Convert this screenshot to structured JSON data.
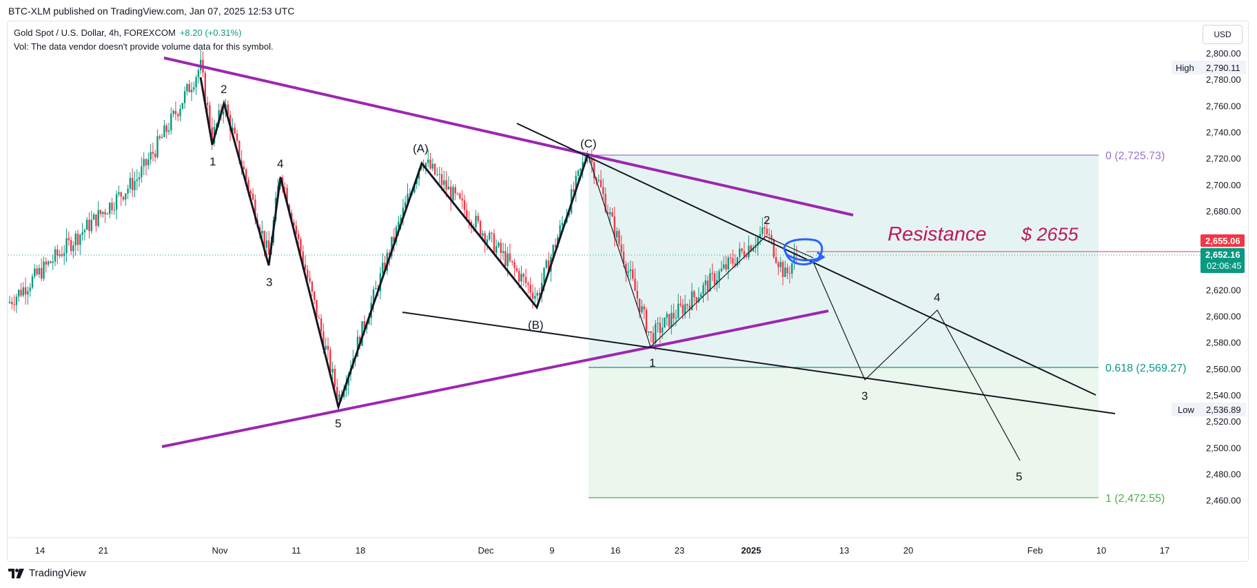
{
  "header": {
    "published": "BTC-XLM published on TradingView.com, Jan 07, 2025 12:53 UTC"
  },
  "legend": {
    "symbol": "Gold Spot / U.S. Dollar, 4h, FOREXCOM",
    "change": "+8.20 (+0.31%)",
    "volume_note": "Vol: The data vendor doesn't provide volume data for this symbol."
  },
  "currency_button": "USD",
  "footer": {
    "brand": "TradingView"
  },
  "chart_data": {
    "type": "candlestick",
    "symbol": "Gold Spot / U.S. Dollar",
    "interval": "4h",
    "y_ticks": [
      "2,800.00",
      "2,780.00",
      "2,760.00",
      "2,740.00",
      "2,720.00",
      "2,700.00",
      "2,680.00",
      "2,660.00",
      "2,640.00",
      "2,620.00",
      "2,600.00",
      "2,580.00",
      "2,560.00",
      "2,540.00",
      "2,520.00",
      "2,500.00",
      "2,480.00",
      "2,460.00"
    ],
    "y_tick_values": [
      2800,
      2780,
      2760,
      2740,
      2720,
      2700,
      2680,
      2660,
      2640,
      2620,
      2600,
      2580,
      2560,
      2540,
      2520,
      2500,
      2480,
      2460
    ],
    "x_ticks": [
      "14",
      "21",
      "Nov",
      "11",
      "18",
      "Dec",
      "9",
      "16",
      "23",
      "2025",
      "13",
      "20",
      "Feb",
      "10",
      "17"
    ],
    "price_labels": {
      "high_label": "High",
      "high_value": "2,790.11",
      "high": 2790.11,
      "low_label": "Low",
      "low_value": "2,536.89",
      "low": 2536.89,
      "resistance_value": "2,655.06",
      "resistance": 2655.06,
      "last_value": "2,652.16",
      "last": 2652.16,
      "countdown": "02:06:45"
    },
    "fib_levels": [
      {
        "label": "0 (2,725.73)",
        "value": 2725.73,
        "color": "#9575cd"
      },
      {
        "label": "0.618 (2,569.27)",
        "value": 2569.27,
        "color": "#089981"
      },
      {
        "label": "1 (2,472.55)",
        "value": 2472.55,
        "color": "#4caf50"
      }
    ],
    "annotation": {
      "resistance_text": "Resistance",
      "resistance_price": "$ 2655",
      "color": "#c2185b"
    },
    "wave_labels": [
      "1",
      "2",
      "3",
      "4",
      "5",
      "(A)",
      "(B)",
      "(C)",
      "1",
      "2",
      "3",
      "4",
      "5"
    ],
    "colors": {
      "up": "#089981",
      "down": "#f23645",
      "purple": "#9c27b0",
      "blue": "#2962ff"
    },
    "price_path": [
      {
        "x": "Oct 10",
        "y": 2610
      },
      {
        "x": "Oct 20",
        "y": 2705
      },
      {
        "x": "Oct 24",
        "y": 2740
      },
      {
        "x": "Oct 31",
        "y": 2790.11
      },
      {
        "x": "Nov 1",
        "y": 2735
      },
      {
        "x": "Nov 2",
        "y": 2762
      },
      {
        "x": "Nov 6",
        "y": 2645
      },
      {
        "x": "Nov 8",
        "y": 2710
      },
      {
        "x": "Nov 14",
        "y": 2536.89
      },
      {
        "x": "Nov 25",
        "y": 2720
      },
      {
        "x": "Dec 6",
        "y": 2615
      },
      {
        "x": "Dec 11",
        "y": 2725.73
      },
      {
        "x": "Dec 19",
        "y": 2584
      },
      {
        "x": "Dec 31",
        "y": 2665
      },
      {
        "x": "Jan 3",
        "y": 2630
      },
      {
        "x": "Jan 7",
        "y": 2652.16
      }
    ],
    "projection_path": [
      {
        "x": "Jan 7",
        "y": 2652.16
      },
      {
        "x": "Jan 14",
        "y": 2560
      },
      {
        "x": "Jan 23",
        "y": 2610
      },
      {
        "x": "Jan 31",
        "y": 2500
      }
    ]
  }
}
